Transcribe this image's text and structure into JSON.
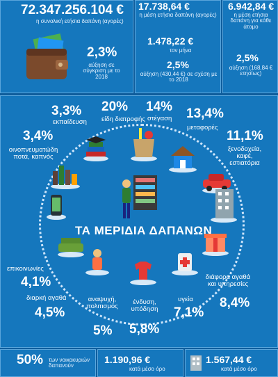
{
  "top_left": {
    "total": "72.347.256.104 €",
    "total_desc": "η συνολική ετήσια δαπάνη (αγορές)",
    "pct": "2,3%",
    "pct_desc": "αύξηση σε σύγκριση με το 2018"
  },
  "top_mid": {
    "annual": "17.738,64 €",
    "annual_desc": "η μέση ετήσια δαπάνη (αγορές)",
    "monthly": "1.478,22 €",
    "monthly_desc": "τον μήνα",
    "pct": "2,5%",
    "pct_desc": "αύξηση (430,44 €) σε σχέση με το 2018"
  },
  "top_right": {
    "person": "6.942,84 €",
    "person_desc": "η μέση ετήσια δαπάνη για κάθε άτομο",
    "pct": "2,5%",
    "pct_desc": "αύξηση (168,84 € ετησίως)"
  },
  "center_title": "ΤΑ ΜΕΡΙΔΙΑ ΔΑΠΑΝΩΝ",
  "categories": [
    {
      "pct": "3,3%",
      "label": "εκπαίδευση"
    },
    {
      "pct": "20%",
      "label": "είδη διατροφής"
    },
    {
      "pct": "14%",
      "label": "στέγαση"
    },
    {
      "pct": "13,4%",
      "label": "μεταφορές"
    },
    {
      "pct": "3,4%",
      "label": "οινοπνευματώδη ποτά, καπνός"
    },
    {
      "pct": "11,1%",
      "label": "ξενοδοχεία, καφέ, εστιατόρια"
    },
    {
      "pct": "4,1%",
      "label": "επικοινωνίες"
    },
    {
      "pct": "4,5%",
      "label": "διαρκή αγαθά"
    },
    {
      "pct": "5%",
      "label": "αναψυχή, πολιτισμός"
    },
    {
      "pct": "5,8%",
      "label": "ένδυση, υπόδηση"
    },
    {
      "pct": "7,1%",
      "label": "υγεία"
    },
    {
      "pct": "8,4%",
      "label": "διάφορα αγαθά και υπηρεσίες"
    }
  ],
  "bottom": {
    "left_pct": "50%",
    "left_desc": "των νοικοκυριών δαπανούν",
    "mid_value": "1.190,96 €",
    "mid_desc": "κατά μέσο όρο",
    "right_value": "1.567,44 €",
    "right_desc": "κατά μέσο όρο"
  },
  "colors": {
    "background": "#0f5d9c",
    "panel": "#1577bd",
    "border": "#5aa6dc"
  }
}
